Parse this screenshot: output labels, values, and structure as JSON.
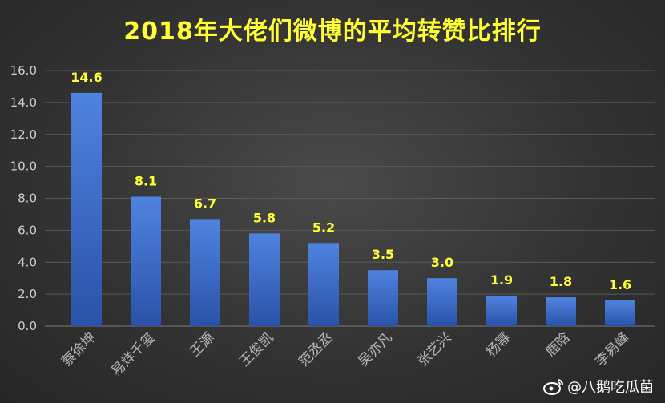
{
  "chart_data": {
    "type": "bar",
    "title": "2018年大佬们微博的平均转赞比排行",
    "categories": [
      "蔡徐坤",
      "易烊千玺",
      "王源",
      "王俊凯",
      "范丞丞",
      "吴亦凡",
      "张艺兴",
      "杨幂",
      "鹿晗",
      "李易峰"
    ],
    "values": [
      14.6,
      8.1,
      6.7,
      5.8,
      5.2,
      3.5,
      3.0,
      1.9,
      1.8,
      1.6
    ],
    "value_labels": [
      "14.6",
      "8.1",
      "6.7",
      "5.8",
      "5.2",
      "3.5",
      "3.0",
      "1.9",
      "1.8",
      "1.6"
    ],
    "y_ticks": [
      "0.0",
      "2.0",
      "4.0",
      "6.0",
      "8.0",
      "10.0",
      "12.0",
      "14.0",
      "16.0"
    ],
    "ylim": [
      0,
      16
    ],
    "grid": true,
    "xlabel": "",
    "ylabel": "",
    "colors": {
      "bar_top": "#4f83e0",
      "bar_bottom": "#2a52a8",
      "value_label": "#ffff33",
      "title": "#ffff33",
      "tick_label": "#d0d0d0",
      "category_label": "#b8b8b8",
      "grid": "#5a5a5a"
    }
  },
  "watermark": {
    "text": "@八鹅吃瓜菌",
    "icon": "weibo-logo-icon"
  }
}
